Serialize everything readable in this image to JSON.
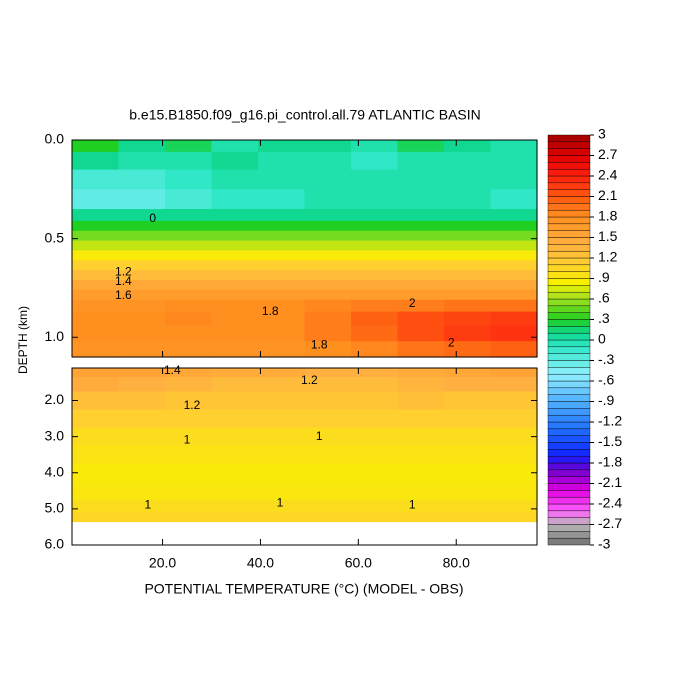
{
  "chart_data": {
    "type": "contour",
    "title": "b.e15.B1850.f09_g16.pi_control.all.79 ATLANTIC BASIN",
    "xlabel": "POTENTIAL TEMPERATURE (°C) (MODEL - OBS)",
    "ylabel": "DEPTH (km)",
    "xlim": [
      1.5,
      96.5
    ],
    "xticks": [
      {
        "value": 20,
        "label": "20.0"
      },
      {
        "value": 40,
        "label": "40.0"
      },
      {
        "value": 60,
        "label": "60.0"
      },
      {
        "value": 80,
        "label": "80.0"
      }
    ],
    "x_edges": [
      1.5,
      11,
      20.5,
      30,
      39.5,
      49,
      58.5,
      68,
      77.5,
      87,
      96.5
    ],
    "panels": [
      {
        "ylim": [
          0,
          1.1
        ],
        "yticks": [
          {
            "value": 0,
            "label": "0.0"
          },
          {
            "value": 0.5,
            "label": "0.5"
          },
          {
            "value": 1,
            "label": "1.0"
          }
        ],
        "y_edges": [
          0,
          0.06,
          0.15,
          0.25,
          0.35,
          0.41,
          0.46,
          0.51,
          0.56,
          0.61,
          0.66,
          0.71,
          0.76,
          0.81,
          0.87,
          0.94,
          1.02,
          1.1
        ],
        "values": [
          [
            0.3,
            0.1,
            0.2,
            0.0,
            0.1,
            0.1,
            0.0,
            0.2,
            0.1,
            0.0
          ],
          [
            0.1,
            0.0,
            0.0,
            0.1,
            0.0,
            0.0,
            -0.1,
            0.0,
            0.0,
            0.0
          ],
          [
            -0.2,
            -0.2,
            -0.1,
            0.0,
            0.0,
            0.0,
            0.0,
            0.0,
            0.0,
            0.0
          ],
          [
            -0.3,
            -0.3,
            -0.2,
            -0.1,
            -0.1,
            0.0,
            0.0,
            0.0,
            0.0,
            -0.1
          ],
          [
            0.1,
            0.1,
            0.1,
            0.1,
            0.1,
            0.1,
            0.1,
            0.1,
            0.1,
            0.1
          ],
          [
            0.3,
            0.3,
            0.3,
            0.3,
            0.3,
            0.3,
            0.3,
            0.3,
            0.3,
            0.3
          ],
          [
            0.5,
            0.5,
            0.5,
            0.5,
            0.5,
            0.5,
            0.5,
            0.5,
            0.5,
            0.5
          ],
          [
            0.7,
            0.7,
            0.7,
            0.7,
            0.7,
            0.7,
            0.7,
            0.7,
            0.7,
            0.7
          ],
          [
            0.9,
            0.9,
            0.9,
            0.9,
            0.9,
            0.9,
            0.9,
            0.9,
            0.9,
            0.9
          ],
          [
            1.1,
            1.1,
            1.1,
            1.1,
            1.1,
            1.1,
            1.1,
            1.1,
            1.1,
            1.1
          ],
          [
            1.3,
            1.3,
            1.3,
            1.3,
            1.3,
            1.3,
            1.3,
            1.3,
            1.3,
            1.3
          ],
          [
            1.5,
            1.5,
            1.5,
            1.5,
            1.5,
            1.5,
            1.5,
            1.5,
            1.5,
            1.5
          ],
          [
            1.65,
            1.65,
            1.65,
            1.65,
            1.65,
            1.65,
            1.65,
            1.65,
            1.65,
            1.65
          ],
          [
            1.75,
            1.75,
            1.8,
            1.8,
            1.8,
            1.85,
            1.9,
            1.9,
            1.95,
            1.95
          ],
          [
            1.8,
            1.8,
            1.85,
            1.8,
            1.8,
            1.9,
            2.05,
            2.15,
            2.2,
            2.25
          ],
          [
            1.8,
            1.8,
            1.8,
            1.8,
            1.8,
            1.9,
            2.0,
            2.15,
            2.25,
            2.3
          ],
          [
            1.75,
            1.75,
            1.75,
            1.75,
            1.75,
            1.8,
            1.85,
            1.95,
            2.0,
            2.05
          ]
        ]
      },
      {
        "ylim": [
          1.1,
          6
        ],
        "yticks": [
          {
            "value": 2,
            "label": "2.0"
          },
          {
            "value": 3,
            "label": "3.0"
          },
          {
            "value": 4,
            "label": "4.0"
          },
          {
            "value": 5,
            "label": "5.0"
          },
          {
            "value": 6,
            "label": "6.0"
          }
        ],
        "y_edges": [
          1.1,
          1.35,
          1.75,
          2.25,
          2.75,
          3.25,
          3.75,
          4.25,
          4.75,
          5.1,
          5.35
        ],
        "values": [
          [
            1.55,
            1.55,
            1.5,
            1.45,
            1.45,
            1.4,
            1.4,
            1.45,
            1.5,
            1.55
          ],
          [
            1.45,
            1.4,
            1.35,
            1.3,
            1.3,
            1.3,
            1.3,
            1.35,
            1.4,
            1.4
          ],
          [
            1.25,
            1.25,
            1.2,
            1.2,
            1.2,
            1.2,
            1.2,
            1.25,
            1.2,
            1.2
          ],
          [
            1.1,
            1.1,
            1.1,
            1.1,
            1.1,
            1.1,
            1.1,
            1.1,
            1.1,
            1.1
          ],
          [
            1.0,
            1.0,
            1.0,
            1.0,
            1.0,
            1.0,
            1.0,
            1.0,
            1.0,
            1.0
          ],
          [
            0.95,
            0.95,
            0.95,
            0.95,
            0.95,
            0.95,
            0.95,
            0.95,
            0.95,
            0.95
          ],
          [
            0.9,
            0.9,
            0.9,
            0.9,
            0.9,
            0.9,
            0.9,
            0.9,
            0.9,
            0.9
          ],
          [
            0.92,
            0.92,
            0.92,
            0.92,
            0.92,
            0.92,
            0.92,
            0.92,
            0.92,
            0.92
          ],
          [
            1.0,
            1.0,
            1.0,
            1.0,
            1.0,
            1.0,
            1.0,
            1.0,
            1.0,
            1.0
          ],
          [
            1.05,
            1.05,
            1.05,
            1.05,
            1.05,
            1.05,
            1.05,
            1.05,
            1.05,
            1.05
          ]
        ]
      }
    ],
    "annotations": [
      {
        "panel": 0,
        "x": 18,
        "y": 0.4,
        "value": 0
      },
      {
        "panel": 0,
        "x": 12,
        "y": 0.67,
        "value": 1.2
      },
      {
        "panel": 0,
        "x": 12,
        "y": 0.72,
        "value": 1.4
      },
      {
        "panel": 0,
        "x": 12,
        "y": 0.79,
        "value": 1.6
      },
      {
        "panel": 0,
        "x": 42,
        "y": 0.87,
        "value": 1.8
      },
      {
        "panel": 0,
        "x": 52,
        "y": 1.04,
        "value": 1.8
      },
      {
        "panel": 0,
        "x": 71,
        "y": 0.83,
        "value": 2
      },
      {
        "panel": 0,
        "x": 79,
        "y": 1.03,
        "value": 2
      },
      {
        "panel": 1,
        "x": 22,
        "y": 1.18,
        "value": 1.4
      },
      {
        "panel": 1,
        "x": 50,
        "y": 1.45,
        "value": 1.2
      },
      {
        "panel": 1,
        "x": 26,
        "y": 2.15,
        "value": 1.2
      },
      {
        "panel": 1,
        "x": 25,
        "y": 3.1,
        "value": 1
      },
      {
        "panel": 1,
        "x": 52,
        "y": 3.0,
        "value": 1
      },
      {
        "panel": 1,
        "x": 17,
        "y": 4.9,
        "value": 1
      },
      {
        "panel": 1,
        "x": 44,
        "y": 4.85,
        "value": 1
      },
      {
        "panel": 1,
        "x": 71,
        "y": 4.9,
        "value": 1
      }
    ],
    "clim": [
      -3,
      3
    ],
    "nlevels": 60,
    "colorbar_ticks": [
      3,
      2.7,
      2.4,
      2.1,
      1.8,
      1.5,
      1.2,
      {
        "value": 0.9,
        "label": ".9"
      },
      {
        "value": 0.6,
        "label": ".6"
      },
      {
        "value": 0.3,
        "label": ".3"
      },
      0,
      {
        "value": -0.3,
        "label": "-.3"
      },
      {
        "value": -0.6,
        "label": "-.6"
      },
      {
        "value": -0.9,
        "label": "-.9"
      },
      -1.2,
      -1.5,
      -1.8,
      -2.1,
      -2.4,
      -2.7,
      -3
    ],
    "colormap": [
      {
        "value": -3,
        "color": "#707070"
      },
      {
        "value": -2.7,
        "color": "#b8b8b8"
      },
      {
        "value": -2.5,
        "color": "#ff60ff"
      },
      {
        "value": -2.2,
        "color": "#e000e0"
      },
      {
        "value": -1.9,
        "color": "#7000d0"
      },
      {
        "value": -1.7,
        "color": "#1020ff"
      },
      {
        "value": -1.3,
        "color": "#2070ff"
      },
      {
        "value": -0.9,
        "color": "#50b0ff"
      },
      {
        "value": -0.5,
        "color": "#90f0ff"
      },
      {
        "value": -0.1,
        "color": "#30e8c8"
      },
      {
        "value": 0.1,
        "color": "#10d890"
      },
      {
        "value": 0.3,
        "color": "#20d020"
      },
      {
        "value": 0.6,
        "color": "#a0e020"
      },
      {
        "value": 0.85,
        "color": "#f8f000"
      },
      {
        "value": 1.1,
        "color": "#ffd030"
      },
      {
        "value": 1.4,
        "color": "#ffb040"
      },
      {
        "value": 1.8,
        "color": "#ff9020"
      },
      {
        "value": 2.1,
        "color": "#ff5810"
      },
      {
        "value": 2.4,
        "color": "#ff2010"
      },
      {
        "value": 2.7,
        "color": "#e00000"
      },
      {
        "value": 3,
        "color": "#a00000"
      }
    ]
  }
}
